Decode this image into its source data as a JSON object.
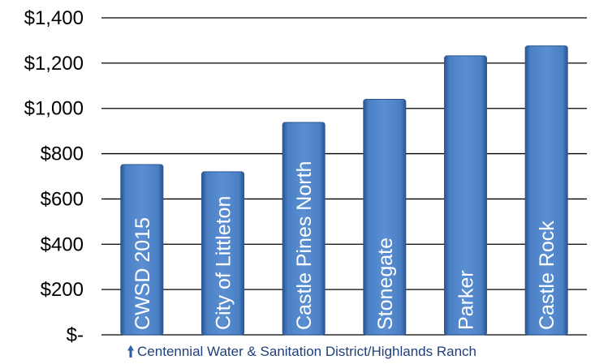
{
  "chart_data": {
    "type": "bar",
    "categories": [
      "CWSD 2015",
      "City of Littleton",
      "Castle Pines North",
      "Stonegate",
      "Parker",
      "Castle Rock"
    ],
    "values": [
      752,
      720,
      938,
      1040,
      1232,
      1276
    ],
    "ylim": [
      0,
      1400
    ],
    "yticks": [
      0,
      200,
      400,
      600,
      800,
      1000,
      1200,
      1400
    ],
    "ytick_labels": [
      "$-",
      "$200",
      "$400",
      "$600",
      "$800",
      "$1,000",
      "$1,200",
      "$1,400"
    ],
    "grid": true,
    "legend": "none",
    "bar_color": "#4a7fc4",
    "bar_edge_color": "#2b5591",
    "grid_color": "#000000"
  },
  "footnote": {
    "arrow_icon": "up-arrow-icon",
    "text": "Centennial Water & Sanitation District/Highlands Ranch"
  }
}
